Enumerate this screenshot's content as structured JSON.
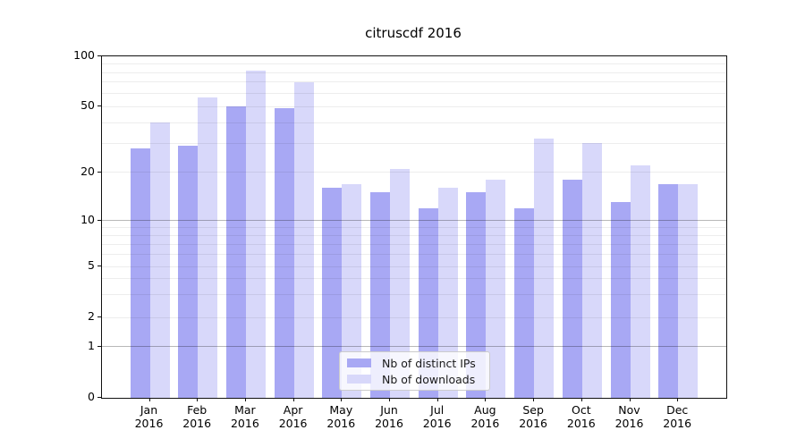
{
  "title": "citruscdf 2016",
  "chart_data": {
    "type": "bar",
    "title": "citruscdf 2016",
    "categories": [
      "Jan",
      "Feb",
      "Mar",
      "Apr",
      "May",
      "Jun",
      "Jul",
      "Aug",
      "Sep",
      "Oct",
      "Nov",
      "Dec"
    ],
    "year": "2016",
    "series": [
      {
        "name": "Nb of distinct IPs",
        "color": "#a8a8f4",
        "values": [
          28,
          29,
          50,
          49,
          16,
          15,
          12,
          15,
          12,
          18,
          13,
          17
        ]
      },
      {
        "name": "Nb of downloads",
        "color": "#d8d8fa",
        "values": [
          40,
          57,
          82,
          70,
          17,
          21,
          16,
          18,
          32,
          30,
          22,
          17
        ]
      }
    ],
    "yticks": [
      0,
      1,
      2,
      5,
      10,
      20,
      50,
      100
    ],
    "ylim": [
      0,
      100
    ],
    "yscale": "symlog",
    "grid": "both",
    "legend_position": "lower center"
  }
}
